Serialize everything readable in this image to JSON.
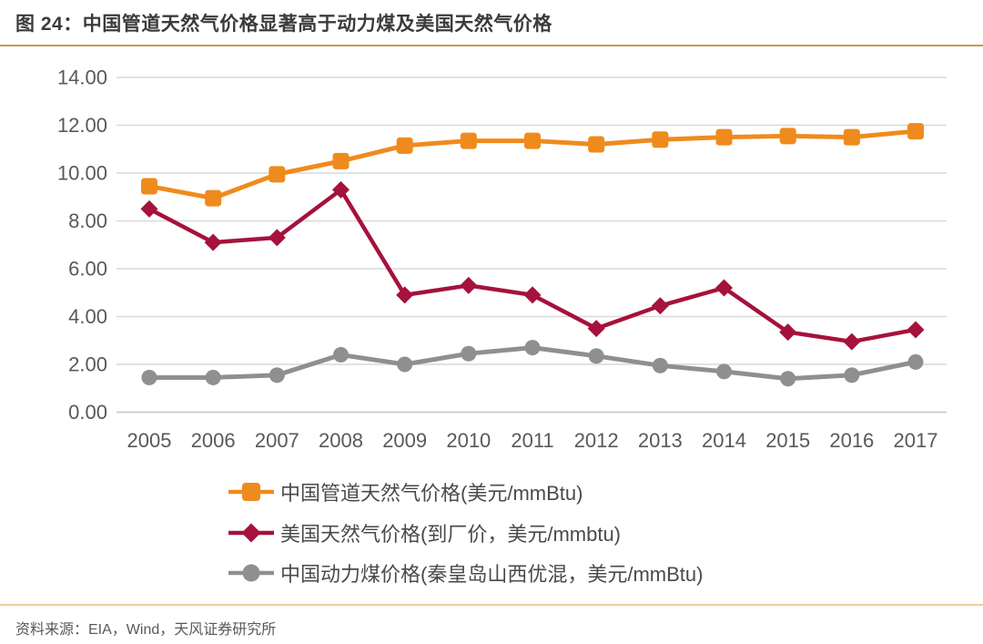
{
  "header": {
    "title": "图 24：中国管道天然气价格显著高于动力煤及美国天然气价格"
  },
  "footer": {
    "source": "资料来源：EIA，Wind，天风证券研究所"
  },
  "colors": {
    "background": "#ffffff",
    "title_text": "#3b3b3b",
    "title_underline": "#c49a52",
    "footer_divider": "#f4ca9e",
    "axis_text": "#595959",
    "gridline": "#d9d9d9",
    "axis_line": "#c6c6c6",
    "legend_text": "#4a4a4a"
  },
  "chart_data": {
    "type": "line",
    "title": "图 24：中国管道天然气价格显著高于动力煤及美国天然气价格",
    "categories": [
      "2005",
      "2006",
      "2007",
      "2008",
      "2009",
      "2010",
      "2011",
      "2012",
      "2013",
      "2014",
      "2015",
      "2016",
      "2017"
    ],
    "series": [
      {
        "name": "中国管道天然气价格(美元/mmBtu)",
        "color": "#ef8b1d",
        "marker": "square",
        "values": [
          9.45,
          8.95,
          9.95,
          10.5,
          11.15,
          11.35,
          11.35,
          11.2,
          11.4,
          11.5,
          11.55,
          11.5,
          11.75
        ]
      },
      {
        "name": "美国天然气价格(到厂价，美元/mmbtu)",
        "color": "#a5123c",
        "marker": "diamond",
        "values": [
          8.5,
          7.1,
          7.3,
          9.3,
          4.9,
          5.3,
          4.9,
          3.5,
          4.45,
          5.2,
          3.35,
          2.95,
          3.45
        ]
      },
      {
        "name": "中国动力煤价格(秦皇岛山西优混，美元/mmBtu)",
        "color": "#8f8f8f",
        "marker": "circle",
        "values": [
          1.45,
          1.45,
          1.55,
          2.4,
          2.0,
          2.45,
          2.7,
          2.35,
          1.95,
          1.7,
          1.4,
          1.55,
          2.1
        ]
      }
    ],
    "xlabel": "",
    "ylabel": "",
    "ylim": [
      0,
      14
    ],
    "y_tick_step": 2,
    "y_tick_labels": [
      "0.00",
      "2.00",
      "4.00",
      "6.00",
      "8.00",
      "10.00",
      "12.00",
      "14.00"
    ],
    "grid": true,
    "legend_position": "bottom"
  }
}
